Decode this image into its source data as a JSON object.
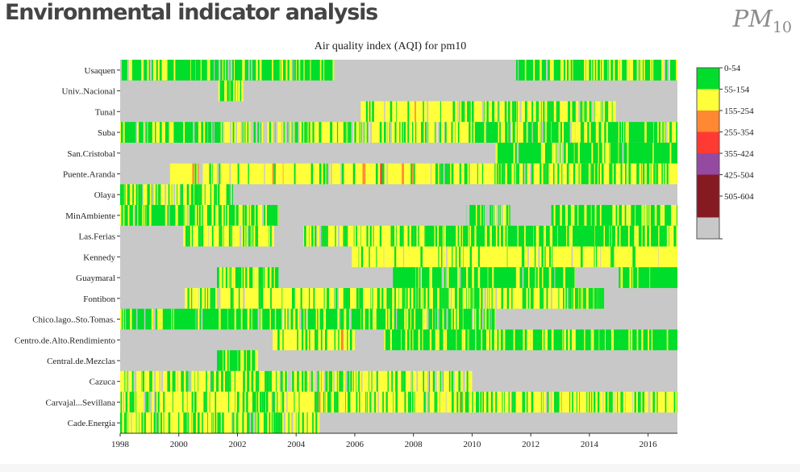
{
  "header": {
    "title": "Environmental indicator analysis",
    "pollutant_symbol": "PM",
    "pollutant_subscript": "10"
  },
  "chart_data": {
    "type": "heatmap",
    "title": "Air quality index (AQI) for pm10",
    "xlabel": "",
    "ylabel": "",
    "xlim": [
      1998,
      2017
    ],
    "x_ticks": [
      "1998",
      "2000",
      "2002",
      "2004",
      "2006",
      "2008",
      "2010",
      "2012",
      "2014",
      "2016"
    ],
    "legend_position": "right",
    "categories": [
      {
        "label": "0-54",
        "color": "#00dd2b"
      },
      {
        "label": "55-154",
        "color": "#ffff3a"
      },
      {
        "label": "155-254",
        "color": "#ff8833"
      },
      {
        "label": "255-354",
        "color": "#ff3a33"
      },
      {
        "label": "355-424",
        "color": "#944aa0"
      },
      {
        "label": "425-504",
        "color": "#861a23"
      },
      {
        "label": "505-604",
        "color": "#861a23"
      },
      {
        "label": "",
        "color": "#c8c8c8"
      }
    ],
    "stations": [
      {
        "name": "Usaquen",
        "segments": [
          {
            "start": 1998.0,
            "end": 2005.3,
            "dominant": 0,
            "mix": [
              [
                1,
                0.3
              ],
              [
                7,
                0.06
              ]
            ]
          },
          {
            "start": 2005.3,
            "end": 2011.5,
            "dominant": 7,
            "mix": []
          },
          {
            "start": 2011.5,
            "end": 2017.0,
            "dominant": 0,
            "mix": [
              [
                1,
                0.3
              ],
              [
                7,
                0.05
              ]
            ]
          }
        ]
      },
      {
        "name": "Univ..Nacional",
        "segments": [
          {
            "start": 2001.35,
            "end": 2002.2,
            "dominant": 1,
            "mix": [
              [
                0,
                0.45
              ]
            ]
          }
        ]
      },
      {
        "name": "Tunal",
        "segments": [
          {
            "start": 2006.2,
            "end": 2009.3,
            "dominant": 1,
            "mix": [
              [
                0,
                0.15
              ],
              [
                7,
                0.08
              ],
              [
                2,
                0.01
              ]
            ]
          },
          {
            "start": 2009.3,
            "end": 2014.9,
            "dominant": 1,
            "mix": [
              [
                0,
                0.35
              ],
              [
                7,
                0.05
              ]
            ]
          }
        ]
      },
      {
        "name": "Suba",
        "segments": [
          {
            "start": 1998.0,
            "end": 2001.5,
            "dominant": 0,
            "mix": [
              [
                1,
                0.25
              ],
              [
                7,
                0.05
              ]
            ]
          },
          {
            "start": 2001.5,
            "end": 2010.0,
            "dominant": 1,
            "mix": [
              [
                0,
                0.3
              ],
              [
                7,
                0.12
              ],
              [
                2,
                0.015
              ]
            ]
          },
          {
            "start": 2010.0,
            "end": 2017.0,
            "dominant": 0,
            "mix": [
              [
                1,
                0.4
              ],
              [
                7,
                0.06
              ]
            ]
          }
        ]
      },
      {
        "name": "San.Cristobal",
        "segments": [
          {
            "start": 2010.8,
            "end": 2017.0,
            "dominant": 0,
            "mix": [
              [
                1,
                0.15
              ],
              [
                7,
                0.05
              ]
            ]
          }
        ]
      },
      {
        "name": "Puente.Aranda",
        "segments": [
          {
            "start": 1999.7,
            "end": 2008.4,
            "dominant": 1,
            "mix": [
              [
                0,
                0.12
              ],
              [
                2,
                0.03
              ],
              [
                3,
                0.005
              ],
              [
                7,
                0.04
              ]
            ]
          },
          {
            "start": 2008.4,
            "end": 2017.0,
            "dominant": 1,
            "mix": [
              [
                0,
                0.4
              ],
              [
                7,
                0.05
              ]
            ]
          }
        ]
      },
      {
        "name": "Olaya",
        "segments": [
          {
            "start": 1998.0,
            "end": 2001.85,
            "dominant": 1,
            "mix": [
              [
                0,
                0.45
              ],
              [
                7,
                0.08
              ]
            ]
          }
        ]
      },
      {
        "name": "MinAmbiente",
        "segments": [
          {
            "start": 1998.0,
            "end": 2003.4,
            "dominant": 0,
            "mix": [
              [
                1,
                0.35
              ],
              [
                7,
                0.06
              ]
            ]
          },
          {
            "start": 2009.8,
            "end": 2011.3,
            "dominant": 0,
            "mix": [
              [
                1,
                0.3
              ],
              [
                7,
                0.3
              ]
            ]
          },
          {
            "start": 2012.7,
            "end": 2017.0,
            "dominant": 0,
            "mix": [
              [
                1,
                0.35
              ]
            ]
          }
        ]
      },
      {
        "name": "Las.Ferias",
        "segments": [
          {
            "start": 2000.15,
            "end": 2003.25,
            "dominant": 1,
            "mix": [
              [
                0,
                0.4
              ],
              [
                7,
                0.05
              ]
            ]
          },
          {
            "start": 2004.25,
            "end": 2008.4,
            "dominant": 1,
            "mix": [
              [
                0,
                0.3
              ],
              [
                7,
                0.05
              ]
            ]
          },
          {
            "start": 2008.4,
            "end": 2017.0,
            "dominant": 0,
            "mix": [
              [
                1,
                0.25
              ]
            ]
          }
        ]
      },
      {
        "name": "Kennedy",
        "segments": [
          {
            "start": 2005.9,
            "end": 2017.0,
            "dominant": 1,
            "mix": [
              [
                0,
                0.12
              ],
              [
                7,
                0.03
              ]
            ]
          }
        ]
      },
      {
        "name": "Guaymaral",
        "segments": [
          {
            "start": 2001.3,
            "end": 2003.4,
            "dominant": 0,
            "mix": [
              [
                1,
                0.3
              ]
            ]
          },
          {
            "start": 2007.3,
            "end": 2013.5,
            "dominant": 0,
            "mix": [
              [
                1,
                0.15
              ],
              [
                7,
                0.02
              ]
            ]
          },
          {
            "start": 2015.0,
            "end": 2017.0,
            "dominant": 0,
            "mix": [
              [
                1,
                0.15
              ]
            ]
          }
        ]
      },
      {
        "name": "Fontibon",
        "segments": [
          {
            "start": 2000.2,
            "end": 2006.0,
            "dominant": 1,
            "mix": [
              [
                0,
                0.3
              ],
              [
                7,
                0.05
              ]
            ]
          },
          {
            "start": 2006.0,
            "end": 2014.5,
            "dominant": 1,
            "mix": [
              [
                0,
                0.4
              ],
              [
                7,
                0.05
              ]
            ]
          }
        ]
      },
      {
        "name": "Chico.lago..Sto.Tomas.",
        "segments": [
          {
            "start": 1998.0,
            "end": 2010.8,
            "dominant": 0,
            "mix": [
              [
                1,
                0.2
              ],
              [
                7,
                0.06
              ]
            ]
          }
        ]
      },
      {
        "name": "Centro.de.Alto.Rendimiento",
        "segments": [
          {
            "start": 2003.2,
            "end": 2006.0,
            "dominant": 1,
            "mix": [
              [
                0,
                0.25
              ],
              [
                2,
                0.01
              ]
            ]
          },
          {
            "start": 2007.0,
            "end": 2017.0,
            "dominant": 0,
            "mix": [
              [
                1,
                0.3
              ]
            ]
          }
        ]
      },
      {
        "name": "Central.de.Mezclas",
        "segments": [
          {
            "start": 2001.3,
            "end": 2002.7,
            "dominant": 0,
            "mix": [
              [
                1,
                0.35
              ]
            ]
          }
        ]
      },
      {
        "name": "Cazuca",
        "segments": [
          {
            "start": 1998.0,
            "end": 2010.0,
            "dominant": 1,
            "mix": [
              [
                0,
                0.4
              ],
              [
                7,
                0.1
              ]
            ]
          }
        ]
      },
      {
        "name": "Carvajal...Sevillana",
        "segments": [
          {
            "start": 1998.0,
            "end": 2017.0,
            "dominant": 1,
            "mix": [
              [
                0,
                0.3
              ],
              [
                7,
                0.05
              ],
              [
                2,
                0.005
              ]
            ]
          }
        ]
      },
      {
        "name": "Cade.Energia",
        "segments": [
          {
            "start": 1998.0,
            "end": 2004.8,
            "dominant": 1,
            "mix": [
              [
                0,
                0.45
              ],
              [
                7,
                0.06
              ]
            ]
          }
        ]
      }
    ]
  }
}
